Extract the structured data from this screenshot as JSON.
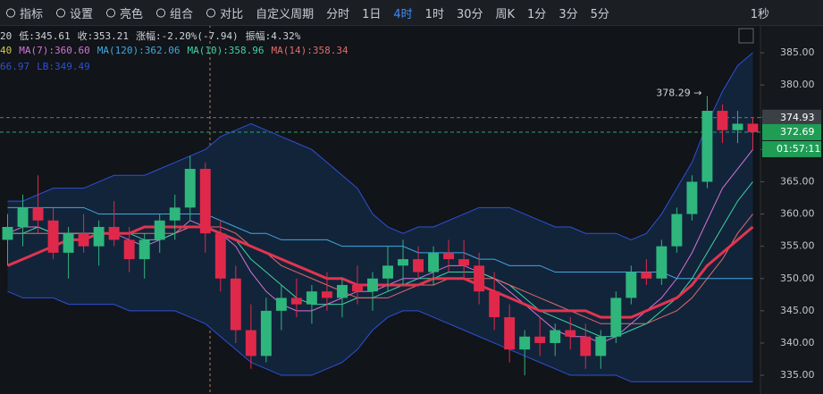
{
  "toolbar": {
    "tools": [
      "指标",
      "设置",
      "亮色",
      "组合",
      "对比"
    ],
    "period_menu": "自定义周期",
    "periods": [
      "分时",
      "1日",
      "4时",
      "1时",
      "30分",
      "周K",
      "1分",
      "3分",
      "5分"
    ],
    "active_period": 2,
    "right": "1秒"
  },
  "info": {
    "row1": [
      "20",
      "低:345.61",
      "收:353.21",
      "涨幅:-2.20%(-7.94)",
      "振幅:4.32%"
    ],
    "row2_prefix": "40"
  },
  "chart_data": {
    "type": "candlestick",
    "up_color": "#2fb67c",
    "down_color": "#e0294a",
    "open": [
      356,
      358,
      361,
      359,
      354,
      357,
      355,
      358,
      356,
      353,
      356,
      359,
      361,
      367,
      357,
      350,
      342,
      338,
      345,
      347,
      346,
      348,
      347,
      349,
      348,
      350,
      352,
      353,
      351,
      354,
      353,
      352,
      348,
      344,
      339,
      341,
      340,
      342,
      341,
      338,
      341,
      347,
      351,
      350,
      355,
      360,
      365,
      376,
      373,
      374
    ],
    "high": [
      360,
      363,
      366,
      361,
      358,
      360,
      359,
      362,
      358,
      357,
      360,
      363,
      369,
      368,
      359,
      352,
      346,
      347,
      349,
      350,
      349,
      351,
      350,
      352,
      351,
      355,
      356,
      355,
      355,
      356,
      356,
      354,
      351,
      346,
      342,
      344,
      343,
      344,
      343,
      342,
      348,
      352,
      353,
      356,
      361,
      366,
      378.29,
      377,
      376,
      375
    ],
    "low": [
      352,
      355,
      357,
      353,
      350,
      354,
      352,
      355,
      351,
      350,
      354,
      356,
      359,
      354,
      348,
      340,
      336,
      337,
      342,
      344,
      343,
      345,
      344,
      346,
      345,
      348,
      349,
      350,
      349,
      351,
      350,
      346,
      342,
      337,
      335,
      338,
      338,
      339,
      336,
      336,
      340,
      346,
      349,
      349,
      354,
      359,
      364,
      371,
      371,
      370
    ],
    "close": [
      358,
      361,
      359,
      354,
      357,
      355,
      358,
      356,
      353,
      356,
      359,
      361,
      367,
      357,
      350,
      342,
      338,
      345,
      347,
      346,
      348,
      347,
      349,
      348,
      350,
      352,
      353,
      351,
      354,
      353,
      352,
      348,
      344,
      339,
      341,
      340,
      342,
      341,
      338,
      341,
      347,
      351,
      350,
      355,
      360,
      365,
      376,
      373,
      374,
      372.69
    ],
    "series": [
      {
        "name": "MA(7):360.60",
        "color": "#d572d8",
        "legend_row": 2,
        "width": 1,
        "values": [
          357,
          358,
          358,
          357,
          357,
          357,
          357,
          357,
          356,
          355,
          356,
          357,
          359,
          358,
          357,
          355,
          351,
          348,
          346,
          345,
          345,
          346,
          347,
          348,
          348,
          349,
          350,
          350,
          351,
          352,
          352,
          351,
          350,
          348,
          346,
          344,
          342,
          341,
          341,
          340,
          341,
          343,
          345,
          347,
          350,
          354,
          359,
          364,
          367,
          370
        ]
      },
      {
        "name": "MA(120):362.06",
        "color": "#3fa9e0",
        "legend_row": 2,
        "width": 1,
        "values": [
          361,
          361,
          361,
          361,
          361,
          361,
          360,
          360,
          360,
          360,
          360,
          360,
          360,
          360,
          359,
          358,
          357,
          357,
          356,
          356,
          356,
          356,
          355,
          355,
          355,
          355,
          355,
          354,
          354,
          354,
          354,
          353,
          353,
          352,
          352,
          352,
          351,
          351,
          351,
          351,
          351,
          351,
          351,
          351,
          350,
          350,
          350,
          350,
          350,
          350
        ]
      },
      {
        "name": "MA(10):358.96",
        "color": "#3fd2a6",
        "legend_row": 2,
        "width": 1,
        "values": [
          357,
          357,
          358,
          357,
          357,
          357,
          357,
          357,
          357,
          356,
          356,
          357,
          358,
          358,
          357,
          356,
          353,
          351,
          349,
          347,
          346,
          346,
          346,
          347,
          347,
          348,
          349,
          350,
          350,
          351,
          351,
          351,
          350,
          349,
          347,
          345,
          344,
          343,
          342,
          341,
          341,
          342,
          343,
          345,
          347,
          350,
          354,
          358,
          362,
          365
        ]
      },
      {
        "name": "MA(14):358.34",
        "color": "#e26a6a",
        "legend_row": 2,
        "width": 1,
        "values": [
          357,
          357,
          357,
          357,
          357,
          357,
          357,
          357,
          357,
          357,
          357,
          357,
          358,
          358,
          358,
          357,
          355,
          354,
          352,
          351,
          350,
          349,
          348,
          347,
          347,
          347,
          348,
          349,
          349,
          350,
          350,
          350,
          350,
          349,
          348,
          347,
          346,
          345,
          344,
          343,
          343,
          343,
          343,
          344,
          345,
          347,
          350,
          353,
          357,
          360
        ]
      },
      {
        "color": "#e3344f",
        "width": 3,
        "values": [
          352,
          353,
          354,
          355,
          356,
          356,
          357,
          357,
          357,
          358,
          358,
          358,
          358,
          358,
          357,
          356,
          355,
          354,
          353,
          352,
          351,
          350,
          350,
          349,
          349,
          349,
          349,
          349,
          350,
          350,
          350,
          349,
          348,
          347,
          346,
          345,
          345,
          345,
          345,
          344,
          344,
          344,
          345,
          346,
          347,
          349,
          352,
          354,
          356,
          358
        ]
      },
      {
        "name": "66.97",
        "color": "#2f4fd8",
        "legend_row": 3,
        "width": 1,
        "band": "upper",
        "values": [
          362,
          362,
          363,
          364,
          364,
          364,
          365,
          366,
          366,
          366,
          367,
          368,
          369,
          370,
          372,
          373,
          374,
          373,
          372,
          371,
          370,
          368,
          366,
          364,
          360,
          358,
          357,
          358,
          358,
          359,
          360,
          361,
          361,
          361,
          360,
          359,
          358,
          358,
          357,
          357,
          357,
          356,
          357,
          360,
          364,
          368,
          374,
          379,
          383,
          385
        ]
      },
      {
        "name": "LB:349.49",
        "color": "#2f4fd8",
        "legend_row": 3,
        "width": 1,
        "band": "lower",
        "values": [
          348,
          347,
          347,
          347,
          346,
          346,
          346,
          346,
          345,
          345,
          345,
          345,
          344,
          343,
          341,
          339,
          337,
          336,
          335,
          335,
          335,
          336,
          337,
          339,
          342,
          344,
          345,
          345,
          344,
          343,
          342,
          341,
          340,
          339,
          338,
          337,
          336,
          335,
          335,
          335,
          335,
          334,
          334,
          334,
          334,
          334,
          334,
          334,
          334,
          334
        ]
      }
    ],
    "band_fill": "#12243a",
    "ylim": [
      332.1,
      389.3
    ],
    "yticks": [
      {
        "value": 385,
        "label": "385.00"
      },
      {
        "value": 380,
        "label": "380.00"
      },
      {
        "value": 375,
        "label": "375.00"
      },
      {
        "value": 370,
        "label": "370.00"
      },
      {
        "value": 365,
        "label": "365.00"
      },
      {
        "value": 360,
        "label": "360.00"
      },
      {
        "value": 355,
        "label": "355.00"
      },
      {
        "value": 350,
        "label": "350.00"
      },
      {
        "value": 345,
        "label": "345.00"
      },
      {
        "value": 340,
        "label": "340.00"
      },
      {
        "value": 335,
        "label": "335.00"
      }
    ],
    "price_tags": [
      {
        "value": 374.93,
        "color": "#3b4046",
        "line": "#8a8f96"
      },
      {
        "value": 372.69,
        "color": "#1f9d55",
        "line": "#2fb67c",
        "countdown": "01:57:11"
      }
    ],
    "annotation": "378.29 →"
  }
}
